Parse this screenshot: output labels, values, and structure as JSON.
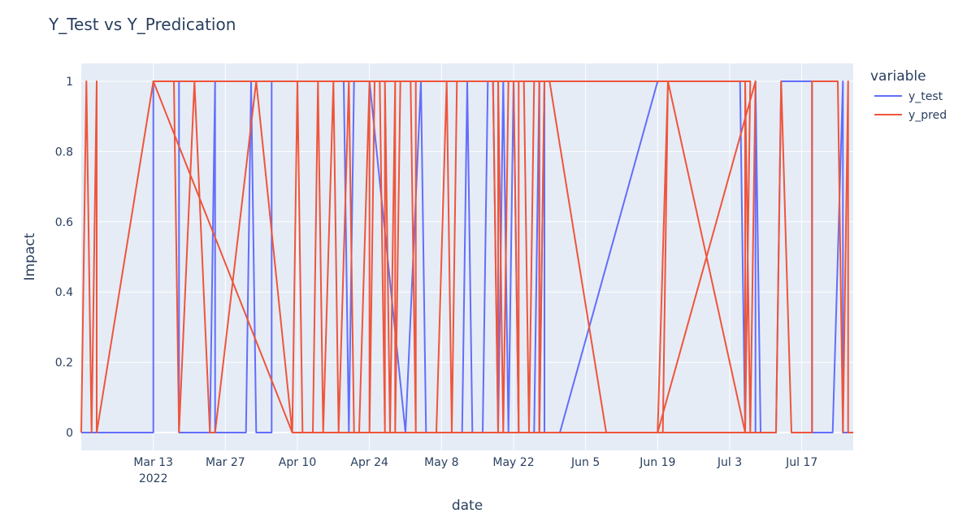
{
  "chart_data": {
    "type": "line",
    "title": "Y_Test vs Y_Predication",
    "xlabel": "date",
    "ylabel": "Impact",
    "ylim": [
      0,
      1.07
    ],
    "xlim": [
      "2022-02-27",
      "2022-07-27"
    ],
    "grid": true,
    "x_ticks": [
      {
        "date": "2022-03-13",
        "label": "Mar 13",
        "sublabel": "2022"
      },
      {
        "date": "2022-03-27",
        "label": "Mar 27",
        "sublabel": ""
      },
      {
        "date": "2022-04-10",
        "label": "Apr 10",
        "sublabel": ""
      },
      {
        "date": "2022-04-24",
        "label": "Apr 24",
        "sublabel": ""
      },
      {
        "date": "2022-05-08",
        "label": "May 8",
        "sublabel": ""
      },
      {
        "date": "2022-05-22",
        "label": "May 22",
        "sublabel": ""
      },
      {
        "date": "2022-06-05",
        "label": "Jun 5",
        "sublabel": ""
      },
      {
        "date": "2022-06-19",
        "label": "Jun 19",
        "sublabel": ""
      },
      {
        "date": "2022-07-03",
        "label": "Jul 3",
        "sublabel": ""
      },
      {
        "date": "2022-07-17",
        "label": "Jul 17",
        "sublabel": ""
      }
    ],
    "y_ticks": [
      {
        "value": 0,
        "label": "0"
      },
      {
        "value": 0.2,
        "label": "0.2"
      },
      {
        "value": 0.4,
        "label": "0.4"
      },
      {
        "value": 0.6,
        "label": "0.6"
      },
      {
        "value": 0.8,
        "label": "0.8"
      },
      {
        "value": 1,
        "label": "1"
      }
    ],
    "legend": {
      "title": "variable",
      "position": "right"
    },
    "series": [
      {
        "name": "y_test",
        "color": "#636efa",
        "points": [
          [
            "2022-02-27",
            0
          ],
          [
            "2022-03-13",
            0
          ],
          [
            "2022-03-13",
            1
          ],
          [
            "2022-03-17",
            1
          ],
          [
            "2022-03-18",
            1
          ],
          [
            "2022-03-18",
            0
          ],
          [
            "2022-03-24",
            0
          ],
          [
            "2022-03-25",
            1
          ],
          [
            "2022-03-25",
            0
          ],
          [
            "2022-03-31",
            0
          ],
          [
            "2022-04-01",
            1
          ],
          [
            "2022-04-02",
            0
          ],
          [
            "2022-04-05",
            0
          ],
          [
            "2022-04-05",
            1
          ],
          [
            "2022-04-19",
            1
          ],
          [
            "2022-04-20",
            0
          ],
          [
            "2022-04-21",
            1
          ],
          [
            "2022-04-22",
            1
          ],
          [
            "2022-04-24",
            1
          ],
          [
            "2022-05-01",
            0
          ],
          [
            "2022-05-04",
            1
          ],
          [
            "2022-05-05",
            0
          ],
          [
            "2022-05-12",
            0
          ],
          [
            "2022-05-13",
            1
          ],
          [
            "2022-05-14",
            0
          ],
          [
            "2022-05-16",
            0
          ],
          [
            "2022-05-17",
            1
          ],
          [
            "2022-05-18",
            1
          ],
          [
            "2022-05-19",
            0
          ],
          [
            "2022-05-20",
            1
          ],
          [
            "2022-05-21",
            0
          ],
          [
            "2022-05-22",
            1
          ],
          [
            "2022-05-23",
            0
          ],
          [
            "2022-05-26",
            0
          ],
          [
            "2022-05-27",
            1
          ],
          [
            "2022-05-27",
            0
          ],
          [
            "2022-05-28",
            1
          ],
          [
            "2022-05-28",
            0
          ],
          [
            "2022-05-31",
            0
          ],
          [
            "2022-06-19",
            1
          ],
          [
            "2022-07-05",
            1
          ],
          [
            "2022-07-06",
            0
          ],
          [
            "2022-07-08",
            0
          ],
          [
            "2022-07-08",
            1
          ],
          [
            "2022-07-09",
            0
          ],
          [
            "2022-07-12",
            0
          ],
          [
            "2022-07-13",
            1
          ],
          [
            "2022-07-19",
            1
          ],
          [
            "2022-07-19",
            0
          ],
          [
            "2022-07-23",
            0
          ],
          [
            "2022-07-25",
            1
          ],
          [
            "2022-07-25",
            0
          ],
          [
            "2022-07-27",
            0
          ]
        ]
      },
      {
        "name": "y_pred",
        "color": "#ef553b",
        "points": [
          [
            "2022-02-27",
            0
          ],
          [
            "2022-02-28",
            1
          ],
          [
            "2022-02-29",
            0
          ],
          [
            "2022-03-01",
            0
          ],
          [
            "2022-03-02",
            1
          ],
          [
            "2022-03-02",
            0
          ],
          [
            "2022-03-13",
            1
          ],
          [
            "2022-03-17",
            1
          ],
          [
            "2022-03-18",
            0
          ],
          [
            "2022-03-21",
            1
          ],
          [
            "2022-03-24",
            0
          ],
          [
            "2022-03-25",
            0
          ],
          [
            "2022-04-02",
            1
          ],
          [
            "2022-04-09",
            0
          ],
          [
            "2022-04-10",
            1
          ],
          [
            "2022-04-11",
            0
          ],
          [
            "2022-04-13",
            0
          ],
          [
            "2022-04-14",
            1
          ],
          [
            "2022-04-15",
            0
          ],
          [
            "2022-04-17",
            1
          ],
          [
            "2022-04-18",
            0
          ],
          [
            "2022-04-20",
            1
          ],
          [
            "2022-04-21",
            0
          ],
          [
            "2022-04-22",
            0
          ],
          [
            "2022-04-24",
            1
          ],
          [
            "2022-04-24",
            0
          ],
          [
            "2022-04-25",
            1
          ],
          [
            "2022-04-26",
            1
          ],
          [
            "2022-04-27",
            0
          ],
          [
            "2022-04-27",
            1
          ],
          [
            "2022-04-28",
            0
          ],
          [
            "2022-04-29",
            1
          ],
          [
            "2022-04-29",
            0
          ],
          [
            "2022-04-30",
            1
          ],
          [
            "2022-05-02",
            1
          ],
          [
            "2022-05-03",
            0
          ],
          [
            "2022-05-03",
            1
          ],
          [
            "2022-05-03",
            0
          ],
          [
            "2022-05-07",
            0
          ],
          [
            "2022-05-09",
            1
          ],
          [
            "2022-05-10",
            0
          ],
          [
            "2022-05-11",
            1
          ],
          [
            "2022-05-18",
            1
          ],
          [
            "2022-05-19",
            0
          ],
          [
            "2022-05-19",
            1
          ],
          [
            "2022-05-20",
            0
          ],
          [
            "2022-05-21",
            1
          ],
          [
            "2022-05-22",
            1
          ],
          [
            "2022-05-23",
            0
          ],
          [
            "2022-05-23",
            1
          ],
          [
            "2022-05-24",
            1
          ],
          [
            "2022-05-25",
            0
          ],
          [
            "2022-05-26",
            1
          ],
          [
            "2022-05-27",
            1
          ],
          [
            "2022-05-27",
            0
          ],
          [
            "2022-05-28",
            1
          ],
          [
            "2022-05-29",
            1
          ],
          [
            "2022-06-09",
            0
          ],
          [
            "2022-06-19",
            0
          ],
          [
            "2022-06-21",
            1
          ],
          [
            "2022-07-06",
            0
          ],
          [
            "2022-07-07",
            0
          ],
          [
            "2022-07-08",
            1
          ],
          [
            "2022-06-19",
            0
          ],
          [
            "2022-06-20",
            0
          ],
          [
            "2022-06-21",
            1
          ],
          [
            "2022-07-06",
            0
          ],
          [
            "2022-07-07",
            1
          ],
          [
            "2022-03-13",
            1
          ],
          [
            "2022-04-09",
            0
          ],
          [
            "2022-07-06",
            0
          ],
          [
            "2022-07-06",
            1
          ],
          [
            "2022-07-07",
            0
          ],
          [
            "2022-07-12",
            0
          ],
          [
            "2022-07-13",
            1
          ],
          [
            "2022-07-15",
            0
          ],
          [
            "2022-07-19",
            0
          ],
          [
            "2022-07-19",
            1
          ],
          [
            "2022-07-24",
            1
          ],
          [
            "2022-07-25",
            0
          ],
          [
            "2022-07-26",
            1
          ],
          [
            "2022-07-26",
            0
          ],
          [
            "2022-07-27",
            0
          ]
        ]
      }
    ]
  }
}
